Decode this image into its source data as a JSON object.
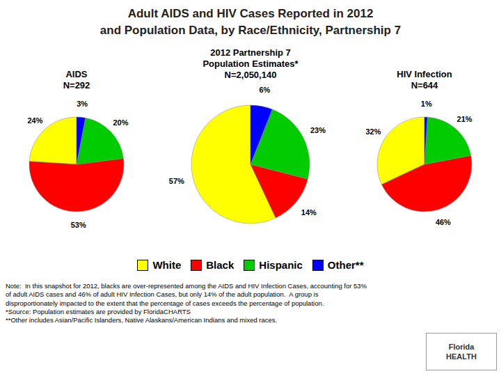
{
  "title": "Adult AIDS and HIV Cases Reported in 2012\nand Population Data, by Race/Ethnicity, Partnership 7",
  "legend": "bottom",
  "annotations": [
    "Note:  In this snapshot for 2012, blacks are over-represented among the AIDS and HIV Infection Cases, accounting for 53%\nof adult AIDS cases and 46% of adult HIV Infection Cases, but only 14% of the adult population.  A group is\ndisproportionately impacted to the extent that the percentage of cases exceeds the percentage of population.\n*Source: Population estimates are provided by FloridaCHARTS\n**Other includes Asian/Pacific Islanders, Native Alaskans/American Indians and mixed races.",
    "Florida",
    "HEALTH"
  ],
  "chart_data": [
    {
      "type": "pie",
      "title": "AIDS\nN=292",
      "categories": [
        "White",
        "Black",
        "Hispanic",
        "Other**"
      ],
      "values": [
        24,
        53,
        20,
        3
      ],
      "value_labels": [
        "24%",
        "53%",
        "20%",
        "3%"
      ],
      "colors": [
        "#FFFF00",
        "#FF0000",
        "#00CC00",
        "#0000FF"
      ],
      "data_labels": true
    },
    {
      "type": "pie",
      "title": "2012 Partnership 7\nPopulation Estimates*\nN=2,050,140",
      "categories": [
        "White",
        "Black",
        "Hispanic",
        "Other**"
      ],
      "values": [
        57,
        14,
        23,
        6
      ],
      "value_labels": [
        "57%",
        "14%",
        "23%",
        "6%"
      ],
      "colors": [
        "#FFFF00",
        "#FF0000",
        "#00CC00",
        "#0000FF"
      ],
      "data_labels": true
    },
    {
      "type": "pie",
      "title": "HIV Infection\nN=644",
      "categories": [
        "White",
        "Black",
        "Hispanic",
        "Other**"
      ],
      "values": [
        32,
        46,
        21,
        1
      ],
      "value_labels": [
        "32%",
        "46%",
        "21%",
        "1%"
      ],
      "colors": [
        "#FFFF00",
        "#FF0000",
        "#00CC00",
        "#0000FF"
      ],
      "data_labels": true
    }
  ]
}
